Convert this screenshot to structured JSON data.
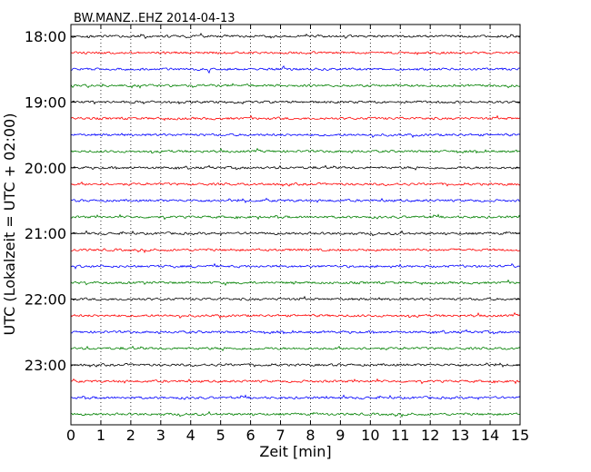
{
  "chart_data": {
    "type": "line",
    "title": "BW.MANZ..EHZ 2014-04-13",
    "xlabel": "Zeit  [min]",
    "ylabel": "UTC (Lokalzeit = UTC + 02:00)",
    "xlim": [
      0,
      15
    ],
    "x_ticks": [
      "0",
      "1",
      "2",
      "3",
      "4",
      "5",
      "6",
      "7",
      "8",
      "9",
      "10",
      "11",
      "12",
      "13",
      "14",
      "15"
    ],
    "vertical_grid": "dotted",
    "trace_interval_minutes": 15,
    "trace_colors": [
      "#000000",
      "#ff0000",
      "#0000ff",
      "#008000"
    ],
    "hour_labels": [
      {
        "label": "18:00",
        "trace_index": 0
      },
      {
        "label": "19:00",
        "trace_index": 4
      },
      {
        "label": "20:00",
        "trace_index": 8
      },
      {
        "label": "21:00",
        "trace_index": 12
      },
      {
        "label": "22:00",
        "trace_index": 16
      },
      {
        "label": "23:00",
        "trace_index": 20
      }
    ],
    "traces": [
      {
        "start": "18:00"
      },
      {
        "start": "18:15"
      },
      {
        "start": "18:30"
      },
      {
        "start": "18:45"
      },
      {
        "start": "19:00"
      },
      {
        "start": "19:15"
      },
      {
        "start": "19:30"
      },
      {
        "start": "19:45"
      },
      {
        "start": "20:00"
      },
      {
        "start": "20:15"
      },
      {
        "start": "20:30"
      },
      {
        "start": "20:45"
      },
      {
        "start": "21:00"
      },
      {
        "start": "21:15"
      },
      {
        "start": "21:30"
      },
      {
        "start": "21:45"
      },
      {
        "start": "22:00"
      },
      {
        "start": "22:15"
      },
      {
        "start": "22:30"
      },
      {
        "start": "22:45"
      },
      {
        "start": "23:00"
      },
      {
        "start": "23:15"
      },
      {
        "start": "23:30"
      },
      {
        "start": "23:45"
      }
    ]
  }
}
